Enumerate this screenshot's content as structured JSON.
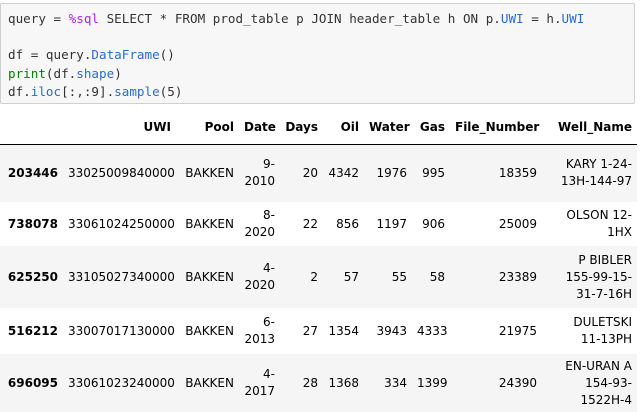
{
  "code": {
    "line1": {
      "a": "query = ",
      "magic": "%sql",
      "b": " SELECT * FROM prod_table p JOIN header_table h ON p.",
      "attr1": "UWI",
      "c": " = h.",
      "attr2": "UWI"
    },
    "line3": {
      "a": "df = query.",
      "attr": "DataFrame",
      "b": "()"
    },
    "line4": {
      "builtin": "print",
      "a": "(df.",
      "attr": "shape",
      "b": ")"
    },
    "line5": {
      "a": "df.",
      "attr1": "iloc",
      "b": "[:,:9].",
      "attr2": "sample",
      "c": "(5)"
    }
  },
  "table": {
    "columns": [
      "",
      "UWI",
      "Pool",
      "Date",
      "Days",
      "Oil",
      "Water",
      "Gas",
      "File_Number",
      "Well_Name"
    ],
    "rows": [
      [
        "203446",
        "33025009840000",
        "BAKKEN",
        "9-\n2010",
        "20",
        "4342",
        "1976",
        "995",
        "18359",
        "KARY 1-24-\n13H-144-97"
      ],
      [
        "738078",
        "33061024250000",
        "BAKKEN",
        "8-\n2020",
        "22",
        "856",
        "1197",
        "906",
        "25009",
        "OLSON 12-\n1HX"
      ],
      [
        "625250",
        "33105027340000",
        "BAKKEN",
        "4-\n2020",
        "2",
        "57",
        "55",
        "58",
        "23389",
        "P BIBLER\n155-99-15-\n31-7-16H"
      ],
      [
        "516212",
        "33007017130000",
        "BAKKEN",
        "6-\n2013",
        "27",
        "1354",
        "3943",
        "4333",
        "21975",
        "DULETSKI\n11-13PH"
      ],
      [
        "696095",
        "33061023240000",
        "BAKKEN",
        "4-\n2017",
        "28",
        "1368",
        "334",
        "1399",
        "24390",
        "EN-URAN A\n154-93-\n1522H-4"
      ]
    ]
  }
}
